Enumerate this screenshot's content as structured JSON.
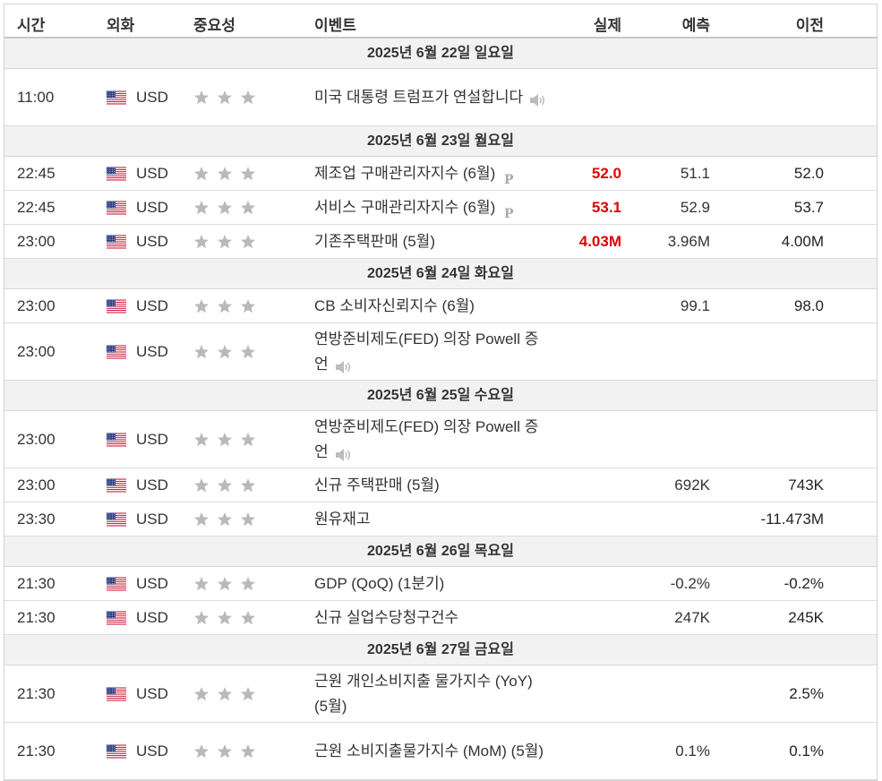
{
  "header": {
    "time": "시간",
    "currency": "외화",
    "importance": "중요성",
    "event": "이벤트",
    "actual": "실제",
    "forecast": "예측",
    "previous": "이전"
  },
  "days": [
    {
      "date": "2025년 6월 22일 일요일",
      "rows": [
        {
          "time": "11:00",
          "currency": "USD",
          "event": "미국 대통령 트럼프가 연설합니다",
          "actual": "",
          "forecast": "",
          "previous": "",
          "badge": "",
          "speech": true,
          "tall": true
        }
      ]
    },
    {
      "date": "2025년 6월 23일 월요일",
      "rows": [
        {
          "time": "22:45",
          "currency": "USD",
          "event": "제조업 구매관리자지수 (6월)",
          "actual": "52.0",
          "forecast": "51.1",
          "previous": "52.0",
          "badge": "P",
          "speech": false,
          "tall": false
        },
        {
          "time": "22:45",
          "currency": "USD",
          "event": "서비스 구매관리자지수 (6월)",
          "actual": "53.1",
          "forecast": "52.9",
          "previous": "53.7",
          "badge": "P",
          "speech": false,
          "tall": false
        },
        {
          "time": "23:00",
          "currency": "USD",
          "event": "기존주택판매 (5월)",
          "actual": "4.03M",
          "forecast": "3.96M",
          "previous": "4.00M",
          "badge": "",
          "speech": false,
          "tall": false
        }
      ]
    },
    {
      "date": "2025년 6월 24일 화요일",
      "rows": [
        {
          "time": "23:00",
          "currency": "USD",
          "event": "CB 소비자신뢰지수 (6월)",
          "actual": "",
          "forecast": "99.1",
          "previous": "98.0",
          "badge": "",
          "speech": false,
          "tall": false
        },
        {
          "time": "23:00",
          "currency": "USD",
          "event": "연방준비제도(FED) 의장 Powell 증언",
          "actual": "",
          "forecast": "",
          "previous": "",
          "badge": "",
          "speech": true,
          "tall": true
        }
      ]
    },
    {
      "date": "2025년 6월 25일 수요일",
      "rows": [
        {
          "time": "23:00",
          "currency": "USD",
          "event": "연방준비제도(FED) 의장 Powell 증언",
          "actual": "",
          "forecast": "",
          "previous": "",
          "badge": "",
          "speech": true,
          "tall": true
        },
        {
          "time": "23:00",
          "currency": "USD",
          "event": "신규 주택판매 (5월)",
          "actual": "",
          "forecast": "692K",
          "previous": "743K",
          "badge": "",
          "speech": false,
          "tall": false
        },
        {
          "time": "23:30",
          "currency": "USD",
          "event": "원유재고",
          "actual": "",
          "forecast": "",
          "previous": "-11.473M",
          "badge": "",
          "speech": false,
          "tall": false
        }
      ]
    },
    {
      "date": "2025년 6월 26일 목요일",
      "rows": [
        {
          "time": "21:30",
          "currency": "USD",
          "event": "GDP (QoQ) (1분기)",
          "actual": "",
          "forecast": "-0.2%",
          "previous": "-0.2%",
          "badge": "",
          "speech": false,
          "tall": false
        },
        {
          "time": "21:30",
          "currency": "USD",
          "event": "신규 실업수당청구건수",
          "actual": "",
          "forecast": "247K",
          "previous": "245K",
          "badge": "",
          "speech": false,
          "tall": false
        }
      ]
    },
    {
      "date": "2025년 6월 27일 금요일",
      "rows": [
        {
          "time": "21:30",
          "currency": "USD",
          "event": "근원 개인소비지출 물가지수 (YoY) (5월)",
          "actual": "",
          "forecast": "",
          "previous": "2.5%",
          "badge": "",
          "speech": false,
          "tall": true
        },
        {
          "time": "21:30",
          "currency": "USD",
          "event": "근원 소비지출물가지수 (MoM) (5월)",
          "actual": "",
          "forecast": "0.1%",
          "previous": "0.1%",
          "badge": "",
          "speech": false,
          "tall": true
        }
      ]
    }
  ],
  "importance_stars": 3,
  "icons": {
    "flag": "us-flag-icon",
    "star": "star-icon",
    "speech": "speaker-icon",
    "badge": "preliminary-badge-icon"
  },
  "colors": {
    "actual": "#e00000",
    "star": "#b9b9b9",
    "date_bg": "#f2f2f2"
  }
}
